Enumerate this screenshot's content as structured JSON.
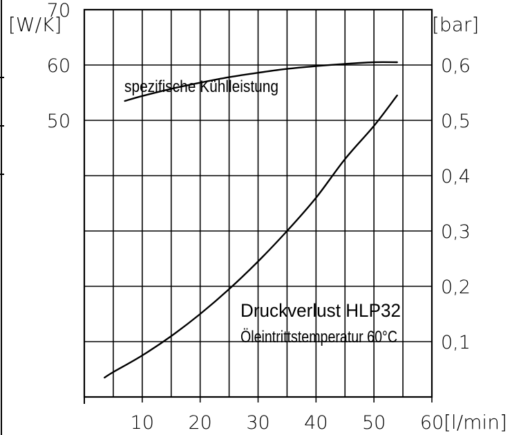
{
  "chart_data": {
    "type": "line",
    "x_unit": "[l/min]",
    "y_left_unit": "[W/K]",
    "y_right_unit": "[bar]",
    "x_ticks": [
      "10",
      "20",
      "30",
      "40",
      "50",
      "60"
    ],
    "y_left_ticks": [
      "50",
      "60",
      "70"
    ],
    "y_right_ticks": [
      "0,1",
      "0,2",
      "0,3",
      "0,4",
      "0,5",
      "0,6"
    ],
    "xlim": [
      0,
      60
    ],
    "y_left_lim": [
      0,
      70
    ],
    "y_right_lim": [
      0,
      0.7
    ],
    "grid": true,
    "series": [
      {
        "name": "spezifische Kühlleistung",
        "axis": "left",
        "x": [
          7,
          10,
          15,
          20,
          25,
          30,
          35,
          40,
          45,
          50,
          54
        ],
        "y": [
          53.5,
          54.4,
          55.7,
          56.8,
          57.8,
          58.6,
          59.3,
          59.8,
          60.2,
          60.5,
          60.5
        ]
      },
      {
        "name": "Druckverlust HLP32",
        "axis": "right",
        "x": [
          3.5,
          5,
          10,
          15,
          20,
          25,
          30,
          35,
          40,
          45,
          50,
          54
        ],
        "y": [
          0.035,
          0.045,
          0.075,
          0.11,
          0.15,
          0.195,
          0.245,
          0.3,
          0.36,
          0.43,
          0.49,
          0.545
        ]
      }
    ],
    "annotations": [
      {
        "text": "spezifische Kühlleistung"
      },
      {
        "text": "Druckverlust HLP32"
      },
      {
        "text": "Öleintrittstemperatur 60°C"
      }
    ]
  }
}
